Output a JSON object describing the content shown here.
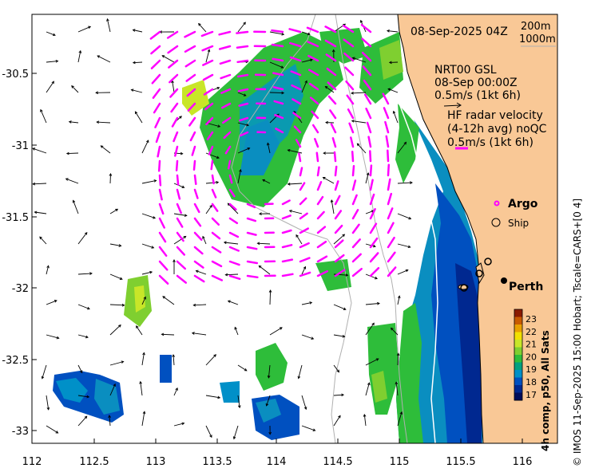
{
  "header": {
    "datetime": "08-Sep-2025 04Z",
    "depth_labels": [
      "200m",
      "1000m"
    ]
  },
  "legend": {
    "model_title": "NRT00 GSL",
    "model_time": "08-Sep 00:00Z",
    "model_scale": "0.5m/s (1kt 6h)",
    "radar_title": "HF radar velocity",
    "radar_sub": "(4-12h avg) noQC",
    "radar_scale": "0.5m/s (1kt 6h)",
    "argo_label": "Argo",
    "ship_label": "Ship",
    "city_label": "Perth"
  },
  "colorbar": {
    "title": "4h comp, p50, All Sats",
    "ticks": [
      "23",
      "22",
      "21",
      "20",
      "19",
      "18",
      "17"
    ],
    "colors": [
      "#8b1a00",
      "#c85a00",
      "#e8a000",
      "#f2e000",
      "#c8e628",
      "#7fcf30",
      "#2ebd3a",
      "#00a080",
      "#0090c8",
      "#0050c0",
      "#002890",
      "#000c5a"
    ]
  },
  "axes": {
    "x_ticks": [
      "112",
      "112.5",
      "113",
      "113.5",
      "114",
      "114.5",
      "115",
      "115.5",
      "116"
    ],
    "y_ticks": [
      "-30.5",
      "-31",
      "-31.5",
      "-32",
      "-32.5",
      "-33"
    ]
  },
  "colors": {
    "land": "#f9c896",
    "radar_vectors": "#ff00ff",
    "model_vectors": "#000000",
    "depth_contour": "#b0b0b0"
  },
  "footer": {
    "copyright": "© IMOS 11-Sep-2025 15:00 Hobart; Tscale=CARS+[0 4]"
  }
}
